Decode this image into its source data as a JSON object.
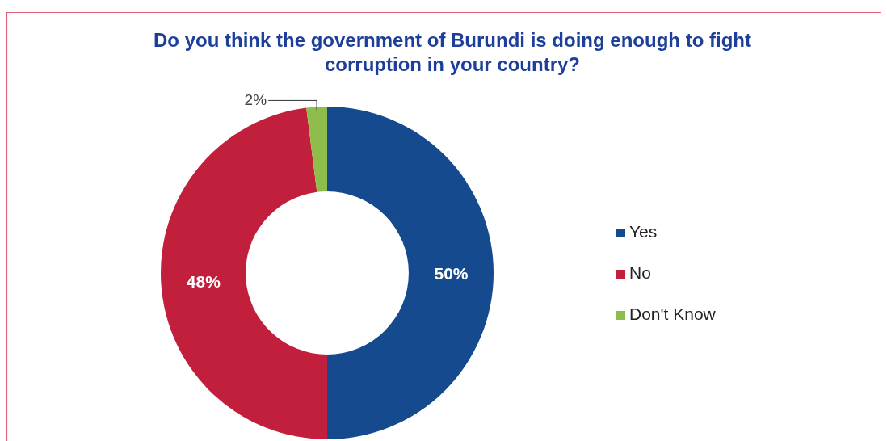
{
  "chart_data": {
    "type": "donut",
    "title": "Do you think the government of Burundi is doing enough to fight corruption in your country?",
    "categories": [
      "Yes",
      "No",
      "Don't Know"
    ],
    "values": [
      50,
      48,
      2
    ],
    "colors": [
      "#154a8f",
      "#c21f3d",
      "#8fbd4b"
    ],
    "value_labels": [
      "50%",
      "48%",
      "2%"
    ],
    "legend": "right"
  }
}
